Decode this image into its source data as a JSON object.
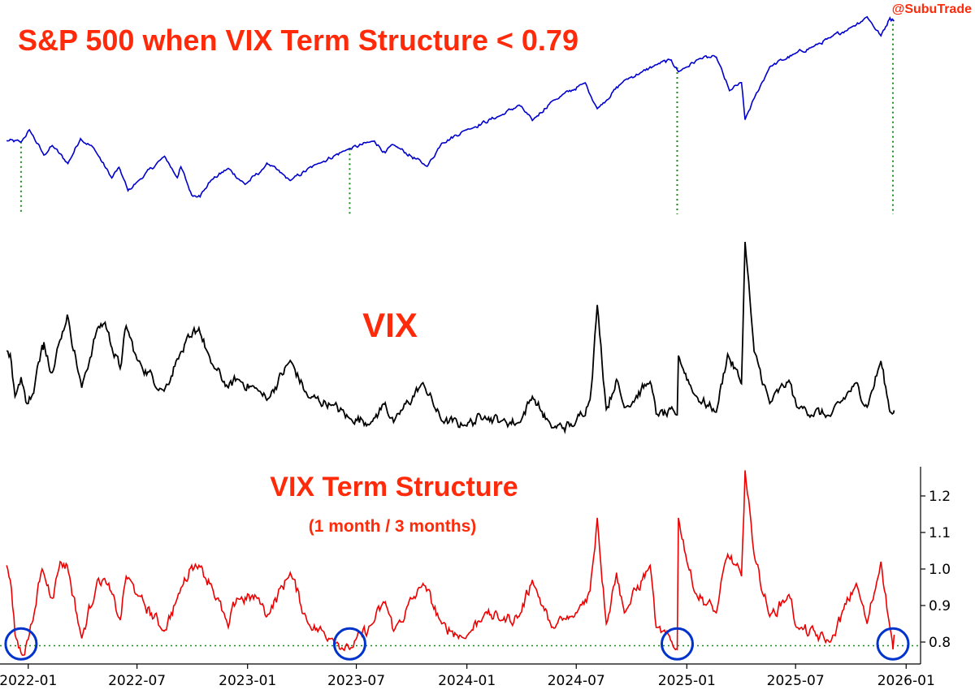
{
  "watermark": "@SubuTrade",
  "threshold": 0.79,
  "colors": {
    "title": "#ff2a0a",
    "spx": "#0000cc",
    "vix": "#000000",
    "term": "#ee0000",
    "signal": "#1a8a1a",
    "circle": "#0033cc"
  },
  "chart_data": [
    {
      "type": "line",
      "title": "S&P 500 when VIX Term Structure < 0.79",
      "axis_visible": false,
      "series": [
        {
          "values": [
            [
              "2021-11-26",
              4594
            ],
            [
              "2021-12-20",
              4568
            ],
            [
              "2022-01-03",
              4796
            ],
            [
              "2022-01-27",
              4326
            ],
            [
              "2022-02-10",
              4504
            ],
            [
              "2022-03-08",
              4170
            ],
            [
              "2022-03-29",
              4632
            ],
            [
              "2022-04-20",
              4459
            ],
            [
              "2022-05-20",
              3901
            ],
            [
              "2022-06-01",
              4101
            ],
            [
              "2022-06-16",
              3666
            ],
            [
              "2022-07-01",
              3825
            ],
            [
              "2022-08-16",
              4305
            ],
            [
              "2022-09-06",
              3908
            ],
            [
              "2022-09-12",
              4110
            ],
            [
              "2022-09-30",
              3586
            ],
            [
              "2022-10-12",
              3577
            ],
            [
              "2022-10-20",
              3665
            ],
            [
              "2022-11-01",
              3856
            ],
            [
              "2022-11-30",
              4080
            ],
            [
              "2022-12-28",
              3783
            ],
            [
              "2023-01-27",
              4070
            ],
            [
              "2023-02-02",
              4179
            ],
            [
              "2023-03-13",
              3855
            ],
            [
              "2023-04-28",
              4169
            ],
            [
              "2023-06-15",
              4425
            ],
            [
              "2023-07-31",
              4589
            ],
            [
              "2023-08-18",
              4369
            ],
            [
              "2023-09-01",
              4515
            ],
            [
              "2023-10-27",
              4117
            ],
            [
              "2023-11-20",
              4547
            ],
            [
              "2023-12-28",
              4783
            ],
            [
              "2024-02-28",
              5069
            ],
            [
              "2024-03-28",
              5254
            ],
            [
              "2024-04-19",
              4967
            ],
            [
              "2024-05-21",
              5321
            ],
            [
              "2024-07-16",
              5667
            ],
            [
              "2024-08-05",
              5186
            ],
            [
              "2024-09-19",
              5713
            ],
            [
              "2024-10-18",
              5864
            ],
            [
              "2024-11-11",
              6001
            ],
            [
              "2024-12-06",
              6090
            ],
            [
              "2024-12-18",
              5872
            ],
            [
              "2025-01-23",
              6118
            ],
            [
              "2025-02-19",
              6144
            ],
            [
              "2025-03-13",
              5521
            ],
            [
              "2025-04-02",
              5670
            ],
            [
              "2025-04-08",
              4982
            ],
            [
              "2025-04-23",
              5375
            ],
            [
              "2025-05-19",
              5963
            ],
            [
              "2025-06-30",
              6205
            ],
            [
              "2025-07-31",
              6339
            ],
            [
              "2025-08-28",
              6501
            ],
            [
              "2025-09-30",
              6688
            ],
            [
              "2025-10-28",
              6890
            ],
            [
              "2025-11-20",
              6538
            ],
            [
              "2025-12-05",
              6870
            ],
            [
              "2025-12-12",
              6827
            ]
          ]
        }
      ],
      "signal_dates": [
        "2021-12-20",
        "2023-06-20",
        "2024-12-16",
        "2025-12-10"
      ]
    },
    {
      "type": "line",
      "title": "VIX",
      "axis_visible": false,
      "series": [
        {
          "values": [
            [
              "2021-11-26",
              28.6
            ],
            [
              "2021-12-02",
              27.9
            ],
            [
              "2021-12-10",
              18.7
            ],
            [
              "2021-12-20",
              22.9
            ],
            [
              "2021-12-28",
              17.5
            ],
            [
              "2022-01-10",
              19.4
            ],
            [
              "2022-01-24",
              29.9
            ],
            [
              "2022-01-27",
              30.5
            ],
            [
              "2022-02-10",
              23.9
            ],
            [
              "2022-02-23",
              31.0
            ],
            [
              "2022-03-07",
              36.5
            ],
            [
              "2022-03-31",
              20.6
            ],
            [
              "2022-04-26",
              33.5
            ],
            [
              "2022-05-09",
              34.8
            ],
            [
              "2022-05-20",
              29.4
            ],
            [
              "2022-06-03",
              24.8
            ],
            [
              "2022-06-13",
              34.0
            ],
            [
              "2022-07-01",
              26.7
            ],
            [
              "2022-08-15",
              19.9
            ],
            [
              "2022-09-06",
              26.9
            ],
            [
              "2022-09-30",
              31.6
            ],
            [
              "2022-10-12",
              33.6
            ],
            [
              "2022-11-01",
              26.0
            ],
            [
              "2022-11-30",
              20.6
            ],
            [
              "2022-12-14",
              22.5
            ],
            [
              "2023-01-20",
              19.9
            ],
            [
              "2023-02-02",
              17.9
            ],
            [
              "2023-03-13",
              26.5
            ],
            [
              "2023-04-12",
              18.5
            ],
            [
              "2023-05-22",
              16.9
            ],
            [
              "2023-06-20",
              13.9
            ],
            [
              "2023-07-28",
              13.3
            ],
            [
              "2023-08-18",
              17.3
            ],
            [
              "2023-09-01",
              13.1
            ],
            [
              "2023-10-20",
              21.7
            ],
            [
              "2023-11-20",
              13.4
            ],
            [
              "2023-12-28",
              12.5
            ],
            [
              "2024-01-31",
              14.4
            ],
            [
              "2024-02-28",
              13.4
            ],
            [
              "2024-03-28",
              13.0
            ],
            [
              "2024-04-19",
              18.7
            ],
            [
              "2024-05-21",
              11.9
            ],
            [
              "2024-06-28",
              12.4
            ],
            [
              "2024-07-24",
              18.0
            ],
            [
              "2024-08-05",
              38.6
            ],
            [
              "2024-08-20",
              15.9
            ],
            [
              "2024-09-06",
              22.4
            ],
            [
              "2024-09-19",
              16.3
            ],
            [
              "2024-11-01",
              21.9
            ],
            [
              "2024-11-11",
              14.9
            ],
            [
              "2024-12-16",
              14.7
            ],
            [
              "2024-12-18",
              27.6
            ],
            [
              "2025-01-13",
              19.2
            ],
            [
              "2025-02-19",
              15.3
            ],
            [
              "2025-03-10",
              27.9
            ],
            [
              "2025-04-02",
              21.5
            ],
            [
              "2025-04-08",
              52.3
            ],
            [
              "2025-04-23",
              28.5
            ],
            [
              "2025-05-19",
              17.2
            ],
            [
              "2025-06-20",
              22.2
            ],
            [
              "2025-07-03",
              16.4
            ],
            [
              "2025-08-28",
              14.4
            ],
            [
              "2025-10-10",
              21.7
            ],
            [
              "2025-10-28",
              16.4
            ],
            [
              "2025-11-20",
              26.4
            ],
            [
              "2025-12-05",
              15.4
            ],
            [
              "2025-12-12",
              15.7
            ]
          ]
        }
      ]
    },
    {
      "type": "line",
      "title": "VIX Term Structure",
      "subtitle": "(1 month / 3 months)",
      "ylim": [
        0.74,
        1.28
      ],
      "yticks": [
        0.8,
        0.9,
        1.0,
        1.1,
        1.2
      ],
      "ytick_labels": [
        "0.8",
        "0.9",
        "1.0",
        "1.1",
        "1.2"
      ],
      "xlim": [
        "2021-11-15",
        "2026-01-25"
      ],
      "xticks": [
        "2022-01-01",
        "2022-07-01",
        "2023-01-01",
        "2023-07-01",
        "2024-01-01",
        "2024-07-01",
        "2025-01-01",
        "2025-07-01",
        "2026-01-01"
      ],
      "xtick_labels": [
        "2022-01",
        "2022-07",
        "2023-01",
        "2023-07",
        "2024-01",
        "2024-07",
        "2025-01",
        "2025-07",
        "2026-01"
      ],
      "series": [
        {
          "values": [
            [
              "2021-11-26",
              1.01
            ],
            [
              "2021-12-02",
              0.97
            ],
            [
              "2021-12-10",
              0.82
            ],
            [
              "2021-12-20",
              0.77
            ],
            [
              "2021-12-28",
              0.79
            ],
            [
              "2022-01-10",
              0.87
            ],
            [
              "2022-01-24",
              1.0
            ],
            [
              "2022-02-10",
              0.92
            ],
            [
              "2022-02-23",
              1.02
            ],
            [
              "2022-03-07",
              1.01
            ],
            [
              "2022-03-31",
              0.81
            ],
            [
              "2022-04-26",
              0.97
            ],
            [
              "2022-05-09",
              0.97
            ],
            [
              "2022-06-03",
              0.86
            ],
            [
              "2022-06-13",
              0.98
            ],
            [
              "2022-07-01",
              0.93
            ],
            [
              "2022-08-15",
              0.83
            ],
            [
              "2022-09-06",
              0.92
            ],
            [
              "2022-09-30",
              1.01
            ],
            [
              "2022-10-12",
              1.01
            ],
            [
              "2022-11-01",
              0.96
            ],
            [
              "2022-11-30",
              0.84
            ],
            [
              "2022-12-14",
              0.92
            ],
            [
              "2023-01-20",
              0.92
            ],
            [
              "2023-02-02",
              0.87
            ],
            [
              "2023-03-13",
              0.99
            ],
            [
              "2023-04-12",
              0.85
            ],
            [
              "2023-05-22",
              0.81
            ],
            [
              "2023-06-20",
              0.78
            ],
            [
              "2023-07-28",
              0.85
            ],
            [
              "2023-08-18",
              0.91
            ],
            [
              "2023-09-01",
              0.83
            ],
            [
              "2023-10-20",
              0.96
            ],
            [
              "2023-11-20",
              0.85
            ],
            [
              "2023-12-28",
              0.81
            ],
            [
              "2024-01-31",
              0.88
            ],
            [
              "2024-02-28",
              0.86
            ],
            [
              "2024-03-28",
              0.87
            ],
            [
              "2024-04-19",
              0.97
            ],
            [
              "2024-05-21",
              0.84
            ],
            [
              "2024-06-28",
              0.87
            ],
            [
              "2024-07-24",
              0.94
            ],
            [
              "2024-08-05",
              1.14
            ],
            [
              "2024-08-20",
              0.85
            ],
            [
              "2024-09-06",
              0.99
            ],
            [
              "2024-09-19",
              0.88
            ],
            [
              "2024-11-01",
              1.01
            ],
            [
              "2024-11-11",
              0.84
            ],
            [
              "2024-12-16",
              0.78
            ],
            [
              "2024-12-18",
              1.14
            ],
            [
              "2025-01-13",
              0.94
            ],
            [
              "2025-02-19",
              0.88
            ],
            [
              "2025-03-10",
              1.04
            ],
            [
              "2025-04-02",
              0.98
            ],
            [
              "2025-04-08",
              1.27
            ],
            [
              "2025-04-23",
              1.04
            ],
            [
              "2025-05-19",
              0.87
            ],
            [
              "2025-06-20",
              0.93
            ],
            [
              "2025-07-03",
              0.84
            ],
            [
              "2025-08-28",
              0.8
            ],
            [
              "2025-10-10",
              0.96
            ],
            [
              "2025-10-28",
              0.85
            ],
            [
              "2025-11-20",
              1.02
            ],
            [
              "2025-12-05",
              0.84
            ],
            [
              "2025-12-10",
              0.78
            ],
            [
              "2025-12-12",
              0.82
            ]
          ]
        }
      ],
      "threshold_line": 0.79,
      "circled_dates": [
        "2021-12-20",
        "2023-06-20",
        "2024-12-16",
        "2025-12-10"
      ]
    }
  ]
}
